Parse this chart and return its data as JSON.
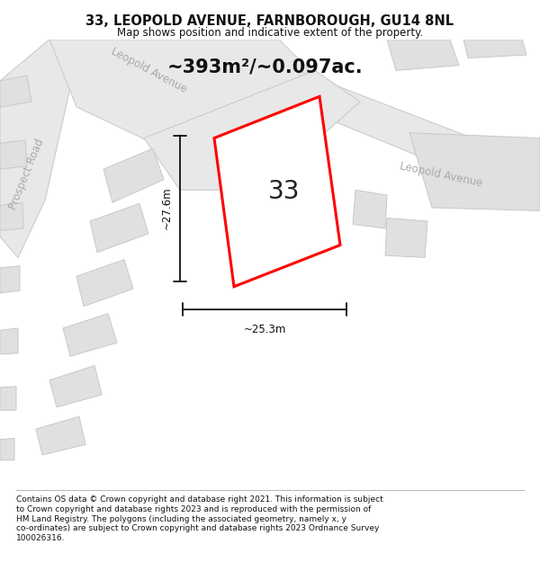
{
  "title": "33, LEOPOLD AVENUE, FARNBOROUGH, GU14 8NL",
  "subtitle": "Map shows position and indicative extent of the property.",
  "area_text": "~393m²/~0.097ac.",
  "plot_number": "33",
  "dim_width": "~25.3m",
  "dim_height": "~27.6m",
  "footer_lines": [
    "Contains OS data © Crown copyright and database right 2021. This information is subject",
    "to Crown copyright and database rights 2023 and is reproduced with the permission of",
    "HM Land Registry. The polygons (including the associated geometry, namely x, y",
    "co-ordinates) are subject to Crown copyright and database rights 2023 Ordnance Survey",
    "100026316."
  ],
  "bg_color": "#ffffff",
  "map_bg": "#f0f0f0",
  "plot_stroke": "#ff0000",
  "plot_fill": "#ffffff",
  "building_fill": "#e0e0e0",
  "building_stroke": "#c8c8c8",
  "road_fill": "#e8e8e8",
  "road_stroke": "#cccccc",
  "label_color": "#aaaaaa",
  "dim_color": "#111111",
  "title_fontsize": 10.5,
  "subtitle_fontsize": 8.5,
  "footer_fontsize": 6.5,
  "area_fontsize": 15,
  "plot_label_fontsize": 20,
  "street_fontsize": 8.5,
  "dim_fontsize": 8.5
}
